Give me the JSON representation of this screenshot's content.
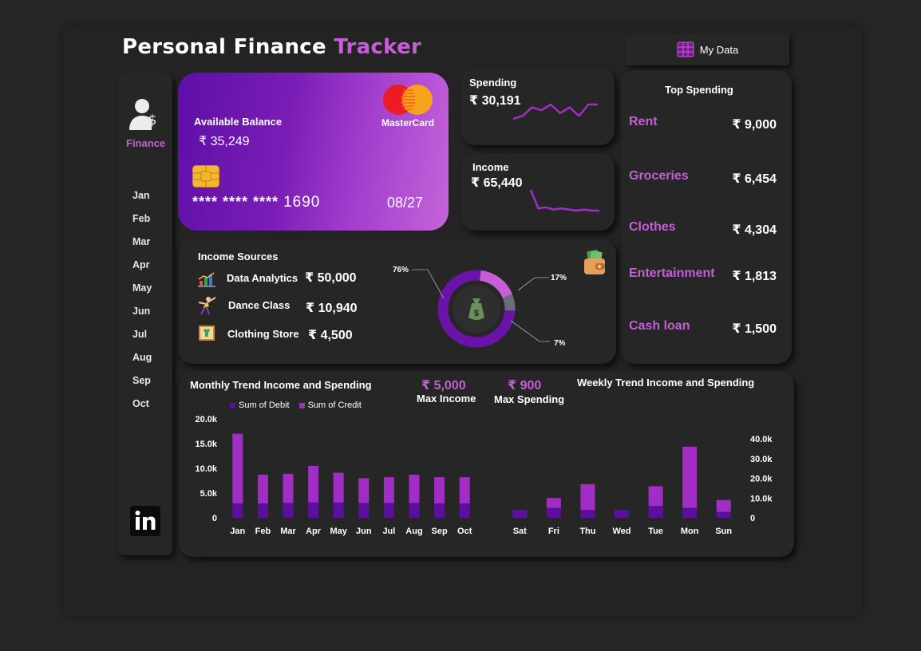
{
  "title": {
    "part1": "Personal Finance",
    "part2": "Tracker"
  },
  "mydata": {
    "label": "My Data"
  },
  "sidebar": {
    "logo_label": "Finance",
    "months": [
      "Jan",
      "Feb",
      "Mar",
      "Apr",
      "May",
      "Jun",
      "Jul",
      "Aug",
      "Sep",
      "Oct"
    ]
  },
  "card": {
    "balance_label": "Available Balance",
    "balance_value": "₹ 35,249",
    "brand": "MasterCard",
    "number_masked": "**** **** ****",
    "number_last": "1690",
    "expiry": "08/27"
  },
  "spending": {
    "label": "Spending",
    "value": "₹ 30,191",
    "trend": [
      4,
      5,
      8,
      7,
      9,
      6,
      8,
      5,
      9,
      9
    ]
  },
  "income": {
    "label": "Income",
    "value": "₹ 65,440",
    "trend": [
      20,
      3,
      4,
      2,
      3,
      2,
      1,
      2,
      1,
      1
    ]
  },
  "top_spending": {
    "title": "Top Spending",
    "items": [
      {
        "name": "Rent",
        "amount": "₹ 9,000"
      },
      {
        "name": "Groceries",
        "amount": "₹ 6,454"
      },
      {
        "name": "Clothes",
        "amount": "₹ 4,304"
      },
      {
        "name": "Entertainment",
        "amount": "₹ 1,813"
      },
      {
        "name": "Cash loan",
        "amount": "₹ 1,500"
      }
    ]
  },
  "income_sources": {
    "title": "Income Sources",
    "items": [
      {
        "name": "Data Analytics",
        "amount": "₹ 50,000"
      },
      {
        "name": "Dance Class",
        "amount": "₹ 10,940"
      },
      {
        "name": "Clothing Store",
        "amount": "₹ 4,500"
      }
    ],
    "donut": {
      "slices": [
        {
          "label": "76%",
          "value": 76,
          "color": "#6a13a8"
        },
        {
          "label": "17%",
          "value": 17,
          "color": "#c65ed8"
        },
        {
          "label": "7%",
          "value": 7,
          "color": "#6b6b7b"
        }
      ]
    }
  },
  "max": {
    "income_value": "₹ 5,000",
    "income_label": "Max Income",
    "spending_value": "₹ 900",
    "spending_label": "Max Spending"
  },
  "chart_data": [
    {
      "type": "bar",
      "stacked": true,
      "title": "Monthly Trend Income and Spending",
      "categories": [
        "Jan",
        "Feb",
        "Mar",
        "Apr",
        "May",
        "Jun",
        "Jul",
        "Aug",
        "Sep",
        "Oct"
      ],
      "series": [
        {
          "name": "Sum of Debit",
          "color": "#5b0f9e",
          "values": [
            2900,
            2900,
            3000,
            3100,
            3100,
            3000,
            3000,
            3000,
            2900,
            2900
          ]
        },
        {
          "name": "Sum of Credit",
          "color": "#a12ec4",
          "values": [
            14100,
            5800,
            5900,
            7400,
            6000,
            5000,
            5200,
            5700,
            5300,
            5300
          ]
        }
      ],
      "yticks": [
        "20.0k",
        "15.0k",
        "10.0k",
        "5.0k",
        "0"
      ],
      "ylim": [
        0,
        20000
      ],
      "legend": "top-left"
    },
    {
      "type": "bar",
      "stacked": true,
      "title": "Weekly Trend Income and Spending",
      "categories": [
        "Sat",
        "Fri",
        "Thu",
        "Wed",
        "Tue",
        "Mon",
        "Sun"
      ],
      "series": [
        {
          "name": "Sum of Debit",
          "color": "#5b0f9e",
          "values": [
            4000,
            5000,
            4000,
            4000,
            6000,
            5000,
            3000
          ]
        },
        {
          "name": "Sum of Credit",
          "color": "#a12ec4",
          "values": [
            0,
            5000,
            13000,
            0,
            10000,
            31000,
            6000
          ]
        }
      ],
      "yticks": [
        "40.0k",
        "30.0k",
        "20.0k",
        "10.0k",
        "0"
      ],
      "ylim": [
        0,
        40000
      ]
    }
  ]
}
